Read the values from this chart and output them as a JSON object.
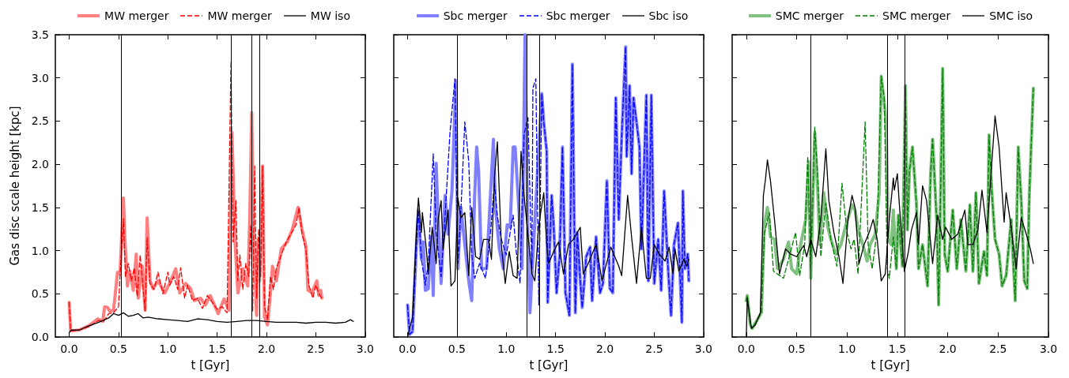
{
  "chart_data": [
    {
      "type": "line",
      "xlabel": "t [Gyr]",
      "ylabel": "Gas disc scale height [kpc]",
      "xlim": [
        -0.14,
        3.0
      ],
      "ylim": [
        0,
        3.5
      ],
      "xticks": [
        {
          "value": 0,
          "label": "0.0"
        },
        {
          "value": 0.5,
          "label": "0.5"
        },
        {
          "value": 1,
          "label": "1.0"
        },
        {
          "value": 1.5,
          "label": "1.5"
        },
        {
          "value": 2,
          "label": "2.0"
        },
        {
          "value": 2.5,
          "label": "2.5"
        },
        {
          "value": 3,
          "label": "3.0"
        }
      ],
      "yticks": [
        {
          "value": 0,
          "label": "0.0"
        },
        {
          "value": 0.5,
          "label": "0.5"
        },
        {
          "value": 1,
          "label": "1.0"
        },
        {
          "value": 1.5,
          "label": "1.5"
        },
        {
          "value": 2,
          "label": "2.0"
        },
        {
          "value": 2.5,
          "label": "2.5"
        },
        {
          "value": 3,
          "label": "3.0"
        },
        {
          "value": 3.5,
          "label": "3.5"
        }
      ],
      "legend": "top",
      "marker": "none",
      "ref_lines": [
        {
          "axis": "x",
          "value": 0.53,
          "color": "#000000"
        },
        {
          "axis": "x",
          "value": 1.64,
          "color": "#000000"
        },
        {
          "axis": "x",
          "value": 1.85,
          "color": "#000000"
        },
        {
          "axis": "x",
          "value": 1.93,
          "color": "#000000"
        }
      ],
      "series": [
        {
          "name": "MW merger",
          "color": "#ff8080",
          "line_style": "solid",
          "x": [
            0,
            0.015,
            0.1,
            0.2,
            0.29,
            0.34,
            0.36,
            0.39,
            0.41,
            0.45,
            0.49,
            0.515,
            0.55,
            0.565,
            0.59,
            0.615,
            0.65,
            0.68,
            0.7,
            0.74,
            0.77,
            0.79,
            0.82,
            0.85,
            0.9,
            0.97,
            1.03,
            1.08,
            1.12,
            1.18,
            1.23,
            1.27,
            1.33,
            1.38,
            1.43,
            1.51,
            1.57,
            1.62,
            1.65,
            1.68,
            1.71,
            1.76,
            1.81,
            1.83,
            1.85,
            1.87,
            1.9,
            1.915,
            1.93,
            1.96,
            1.98,
            2.01,
            2.04,
            2.06,
            2.1,
            2.15,
            2.21,
            2.26,
            2.32,
            2.36,
            2.4,
            2.42,
            2.46,
            2.51,
            2.53,
            2.55,
            2.56
          ],
          "values": [
            0.4,
            0.07,
            0.08,
            0.13,
            0.21,
            0.18,
            0.35,
            0.34,
            0.3,
            0.31,
            0.75,
            0.73,
            1.61,
            1.13,
            0.59,
            0.76,
            0.54,
            0.96,
            0.45,
            0.82,
            0.31,
            1.38,
            0.65,
            0.56,
            0.65,
            0.51,
            0.65,
            0.79,
            0.51,
            0.62,
            0.56,
            0.42,
            0.45,
            0.37,
            0.48,
            0.27,
            0.44,
            0.31,
            2.37,
            1.13,
            0.51,
            0.79,
            0.59,
            1.36,
            2.6,
            1.07,
            0.25,
            1.13,
            0.65,
            1.98,
            0.23,
            0.14,
            0.51,
            0.82,
            0.65,
            1.02,
            1.1,
            1.24,
            1.5,
            1.24,
            1.05,
            0.54,
            0.51,
            0.65,
            0.48,
            0.54,
            0.45
          ]
        },
        {
          "name": "MW merger",
          "color": "#ff0000",
          "line_style": "dashed",
          "x": [
            0,
            0.015,
            0.1,
            0.2,
            0.3,
            0.35,
            0.4,
            0.45,
            0.5,
            0.52,
            0.55,
            0.57,
            0.6,
            0.63,
            0.66,
            0.69,
            0.72,
            0.75,
            0.77,
            0.79,
            0.82,
            0.86,
            0.9,
            0.95,
            1.0,
            1.02,
            1.06,
            1.1,
            1.13,
            1.17,
            1.2,
            1.25,
            1.3,
            1.35,
            1.4,
            1.45,
            1.5,
            1.55,
            1.6,
            1.64,
            1.66,
            1.69,
            1.71,
            1.73,
            1.76,
            1.79,
            1.82,
            1.84,
            1.86,
            1.88,
            1.9,
            1.92,
            1.94,
            1.96,
            1.98,
            2.01,
            2.04,
            2.07,
            2.1,
            2.15,
            2.2,
            2.25,
            2.3,
            2.33,
            2.36,
            2.4,
            2.43,
            2.47,
            2.5,
            2.53,
            2.56
          ],
          "values": [
            0.4,
            0.07,
            0.08,
            0.12,
            0.19,
            0.18,
            0.27,
            0.28,
            0.35,
            0.8,
            1.37,
            0.7,
            0.85,
            0.65,
            0.8,
            0.47,
            0.95,
            0.55,
            0.3,
            1.15,
            0.62,
            0.55,
            0.75,
            0.5,
            0.75,
            0.6,
            0.7,
            0.55,
            0.8,
            0.45,
            0.6,
            0.42,
            0.45,
            0.33,
            0.48,
            0.4,
            0.32,
            0.35,
            0.28,
            3.19,
            1.1,
            1.58,
            0.65,
            0.95,
            0.55,
            0.85,
            0.7,
            1.3,
            0.3,
            1.98,
            0.45,
            1.25,
            0.7,
            1.98,
            0.35,
            0.2,
            0.7,
            0.55,
            0.8,
            0.95,
            1.1,
            1.2,
            1.3,
            1.5,
            1.2,
            1.0,
            0.6,
            0.45,
            0.6,
            0.5,
            0.45
          ]
        },
        {
          "name": "MW iso",
          "color": "#000000",
          "line_style": "solid",
          "x": [
            0,
            0.02,
            0.1,
            0.2,
            0.3,
            0.4,
            0.45,
            0.5,
            0.55,
            0.6,
            0.65,
            0.7,
            0.75,
            0.8,
            0.9,
            1.0,
            1.1,
            1.2,
            1.3,
            1.4,
            1.5,
            1.6,
            1.7,
            1.8,
            1.9,
            2.0,
            2.1,
            2.2,
            2.3,
            2.4,
            2.5,
            2.6,
            2.7,
            2.8,
            2.85,
            2.88
          ],
          "values": [
            0.05,
            0.08,
            0.08,
            0.13,
            0.17,
            0.22,
            0.27,
            0.25,
            0.28,
            0.24,
            0.25,
            0.27,
            0.22,
            0.23,
            0.21,
            0.2,
            0.19,
            0.18,
            0.21,
            0.2,
            0.18,
            0.17,
            0.18,
            0.19,
            0.19,
            0.18,
            0.17,
            0.17,
            0.17,
            0.16,
            0.17,
            0.17,
            0.16,
            0.17,
            0.2,
            0.18
          ]
        }
      ]
    },
    {
      "type": "line",
      "xlabel": "t [Gyr]",
      "xlim": [
        -0.14,
        3.0
      ],
      "ylim": [
        0,
        3.5
      ],
      "tick_labels": "x",
      "xticks": [
        {
          "value": 0,
          "label": "0.0"
        },
        {
          "value": 0.5,
          "label": "0.5"
        },
        {
          "value": 1,
          "label": "1.0"
        },
        {
          "value": 1.5,
          "label": "1.5"
        },
        {
          "value": 2,
          "label": "2.0"
        },
        {
          "value": 2.5,
          "label": "2.5"
        },
        {
          "value": 3,
          "label": "3.0"
        }
      ],
      "yticks": [
        0,
        0.5,
        1,
        1.5,
        2,
        2.5,
        3,
        3.5
      ],
      "legend": "top",
      "marker": "none",
      "ref_lines": [
        {
          "axis": "x",
          "value": 0.5,
          "color": "#000000"
        },
        {
          "axis": "x",
          "value": 1.21,
          "color": "#000000"
        },
        {
          "axis": "x",
          "value": 1.34,
          "color": "#000000"
        }
      ],
      "series": [
        {
          "name": "Sbc merger",
          "color": "#8080ff",
          "line_style": "solid",
          "x": [
            0,
            0.02,
            0.05,
            0.09,
            0.11,
            0.14,
            0.16,
            0.18,
            0.21,
            0.24,
            0.26,
            0.29,
            0.31,
            0.34,
            0.38,
            0.41,
            0.45,
            0.49,
            0.51,
            0.54,
            0.58,
            0.62,
            0.65,
            0.68,
            0.7,
            0.72,
            0.75,
            0.8,
            0.84,
            0.87,
            0.89,
            0.93,
            0.97,
            1.01,
            1.04,
            1.07,
            1.09,
            1.12,
            1.16,
            1.19,
            1.22,
            1.24,
            1.36,
            1.38,
            1.41,
            1.42,
            1.46,
            1.48,
            1.51,
            1.54,
            1.57,
            1.6,
            1.64,
            1.67,
            1.7,
            1.72,
            1.75,
            1.77,
            1.81,
            1.85,
            1.87,
            1.91,
            1.95,
            1.98,
            2.02,
            2.05,
            2.08,
            2.11,
            2.14,
            2.17,
            2.21,
            2.22,
            2.25,
            2.27,
            2.29,
            2.32,
            2.35,
            2.37,
            2.42,
            2.44,
            2.47,
            2.5,
            2.54,
            2.57,
            2.6,
            2.64,
            2.67,
            2.7,
            2.74,
            2.78,
            2.79,
            2.81,
            2.84,
            2.85
          ],
          "values": [
            0.37,
            0.03,
            0.06,
            1.07,
            1.47,
            0.9,
            1.1,
            0.54,
            0.56,
            1.16,
            0.48,
            2.01,
            1.36,
            0.62,
            1.64,
            1.19,
            1.69,
            2.97,
            0.79,
            1.5,
            1.07,
            0.65,
            0.42,
            1.64,
            2.2,
            1.92,
            0.79,
            0.79,
            1.64,
            2.29,
            1.5,
            1.02,
            0.79,
            1.3,
            1.27,
            2.2,
            2.2,
            1.64,
            0.79,
            3.5,
            1.07,
            0.28,
            2.82,
            2.49,
            2.15,
            0.4,
            1.64,
            1.3,
            0.51,
            0.93,
            2.2,
            0.51,
            0.25,
            3.16,
            0.28,
            1.21,
            0.65,
            0.34,
            0.93,
            1.04,
            0.42,
            1.16,
            0.51,
            0.62,
            1.81,
            0.56,
            0.51,
            2.77,
            1.36,
            2.32,
            3.36,
            2.09,
            2.91,
            1.89,
            2.77,
            2.49,
            2.2,
            1.02,
            2.8,
            0.65,
            2.8,
            0.62,
            1.13,
            0.54,
            1.69,
            0.79,
            0.25,
            1.07,
            1.32,
            0.17,
            1.69,
            0.79,
            0.96,
            0.65
          ]
        },
        {
          "name": "Sbc merger",
          "color": "#0000ff",
          "line_style": "dashed",
          "x": [
            0,
            0.02,
            0.05,
            0.09,
            0.11,
            0.14,
            0.18,
            0.21,
            0.26,
            0.29,
            0.34,
            0.38,
            0.43,
            0.48,
            0.51,
            0.54,
            0.58,
            0.62,
            0.65,
            0.68,
            0.73,
            0.79,
            0.84,
            0.88,
            0.91,
            0.95,
            1.0,
            1.07,
            1.1,
            1.14,
            1.18,
            1.22,
            1.26,
            1.27,
            1.3,
            1.33,
            1.36,
            1.38,
            1.41,
            1.42,
            1.46,
            1.48,
            1.51,
            1.54,
            1.57,
            1.6,
            1.64,
            1.67,
            1.7,
            1.72,
            1.75,
            1.77,
            1.81,
            1.85,
            1.87,
            1.91,
            1.95,
            1.98,
            2.02,
            2.05,
            2.08,
            2.11,
            2.14,
            2.17,
            2.21,
            2.22,
            2.25,
            2.27,
            2.29,
            2.32,
            2.35,
            2.37,
            2.42,
            2.44,
            2.47,
            2.5,
            2.54,
            2.57,
            2.6,
            2.64,
            2.67,
            2.7,
            2.74,
            2.78,
            2.79,
            2.81,
            2.84,
            2.85
          ],
          "values": [
            0.37,
            0.03,
            0.06,
            1.07,
            1.47,
            0.9,
            0.6,
            0.85,
            2.12,
            1.2,
            0.7,
            1.4,
            2.37,
            2.99,
            0.85,
            1.45,
            2.49,
            2.03,
            0.95,
            0.68,
            0.85,
            0.68,
            1.2,
            1.78,
            1.4,
            1.13,
            0.95,
            1.41,
            1.0,
            0.62,
            2.34,
            2.54,
            0.79,
            2.88,
            2.99,
            0.37,
            2.82,
            2.49,
            2.15,
            0.4,
            1.64,
            1.3,
            0.51,
            0.93,
            2.2,
            0.51,
            0.25,
            3.16,
            0.28,
            1.21,
            0.65,
            0.34,
            0.93,
            1.04,
            0.42,
            1.16,
            0.51,
            0.62,
            1.81,
            0.56,
            0.51,
            2.77,
            1.36,
            2.32,
            3.36,
            2.09,
            2.91,
            1.89,
            2.77,
            2.49,
            2.2,
            1.02,
            2.8,
            0.65,
            2.8,
            0.62,
            1.13,
            0.54,
            1.69,
            0.79,
            0.25,
            1.07,
            1.32,
            0.17,
            1.69,
            0.79,
            0.96,
            0.65
          ]
        },
        {
          "name": "Sbc iso",
          "color": "#000000",
          "line_style": "solid",
          "x": [
            0,
            0.05,
            0.09,
            0.11,
            0.14,
            0.15,
            0.19,
            0.21,
            0.25,
            0.29,
            0.31,
            0.34,
            0.36,
            0.39,
            0.41,
            0.44,
            0.48,
            0.51,
            0.54,
            0.58,
            0.62,
            0.65,
            0.69,
            0.73,
            0.77,
            0.82,
            0.85,
            0.88,
            0.91,
            0.95,
            0.99,
            1.03,
            1.07,
            1.11,
            1.15,
            1.18,
            1.22,
            1.26,
            1.29,
            1.33,
            1.38,
            1.41,
            1.43,
            1.48,
            1.53,
            1.58,
            1.63,
            1.68,
            1.75,
            1.78,
            1.83,
            1.91,
            1.97,
            2.06,
            2.14,
            2.17,
            2.23,
            2.27,
            2.32,
            2.37,
            2.42,
            2.46,
            2.5,
            2.55,
            2.61,
            2.65,
            2.69,
            2.71,
            2.75,
            2.8,
            2.83,
            2.85
          ],
          "values": [
            0,
            0.23,
            1.24,
            1.61,
            1.21,
            1.44,
            1.02,
            0.73,
            1.27,
            0.85,
            1.36,
            1.58,
            1.02,
            1.3,
            1.47,
            0.59,
            0.65,
            1.61,
            1.38,
            1.44,
            0.71,
            1.5,
            0.93,
            0.9,
            1.13,
            1.13,
            0.9,
            1.84,
            2.26,
            1.07,
            0.62,
            0.99,
            0.71,
            0.68,
            2.15,
            1.64,
            1.19,
            0.73,
            0.65,
            1.3,
            1.67,
            1.07,
            0.85,
            0.99,
            1.1,
            0.73,
            1.07,
            1.13,
            1.27,
            0.73,
            0.85,
            1.07,
            0.65,
            1.04,
            0.82,
            0.71,
            1.64,
            1.16,
            0.62,
            1.27,
            0.68,
            0.68,
            1.07,
            0.96,
            0.88,
            1.04,
            0.73,
            1.02,
            0.76,
            0.9,
            0.82,
            0.9
          ]
        }
      ]
    },
    {
      "type": "line",
      "xlabel": "t [Gyr]",
      "xlim": [
        -0.14,
        3.0
      ],
      "ylim": [
        0,
        3.5
      ],
      "tick_labels": "x",
      "xticks": [
        {
          "value": 0,
          "label": "0.0"
        },
        {
          "value": 0.5,
          "label": "0.5"
        },
        {
          "value": 1,
          "label": "1.0"
        },
        {
          "value": 1.5,
          "label": "1.5"
        },
        {
          "value": 2,
          "label": "2.0"
        },
        {
          "value": 2.5,
          "label": "2.5"
        },
        {
          "value": 3,
          "label": "3.0"
        }
      ],
      "yticks": [
        0,
        0.5,
        1,
        1.5,
        2,
        2.5,
        3,
        3.5
      ],
      "legend": "top",
      "marker": "none",
      "ref_lines": [
        {
          "axis": "x",
          "value": 0.64,
          "color": "#000000"
        },
        {
          "axis": "x",
          "value": 1.4,
          "color": "#000000"
        },
        {
          "axis": "x",
          "value": 1.57,
          "color": "#000000"
        }
      ],
      "series": [
        {
          "name": "SMC merger",
          "color": "#80c080",
          "line_style": "solid",
          "x": [
            0,
            0.01,
            0.04,
            0.06,
            0.11,
            0.15,
            0.18,
            0.21,
            0.24,
            0.28,
            0.31,
            0.37,
            0.42,
            0.45,
            0.5,
            0.54,
            0.59,
            0.62,
            0.64,
            0.68,
            0.71,
            0.73,
            0.77,
            0.81,
            0.84,
            0.89,
            0.94,
            0.99,
            1.05,
            1.08,
            1.11,
            1.15,
            1.2,
            1.23,
            1.28,
            1.32,
            1.34,
            1.38,
            1.39,
            1.41,
            1.44,
            1.46,
            1.49,
            1.51,
            1.55,
            1.58,
            1.6,
            1.62,
            1.65,
            1.69,
            1.71,
            1.75,
            1.8,
            1.83,
            1.85,
            1.89,
            1.91,
            1.95,
            1.97,
            2.0,
            2.05,
            2.09,
            2.13,
            2.18,
            2.22,
            2.25,
            2.28,
            2.31,
            2.36,
            2.39,
            2.41,
            2.44,
            2.47,
            2.51,
            2.54,
            2.58,
            2.63,
            2.67,
            2.7,
            2.73,
            2.76,
            2.79,
            2.81,
            2.85
          ],
          "values": [
            0.42,
            0.48,
            0.14,
            0.1,
            0.2,
            0.28,
            1.3,
            1.5,
            1.16,
            1.13,
            0.79,
            0.9,
            1.1,
            0.79,
            0.73,
            1.07,
            1.36,
            2.03,
            0.68,
            2.37,
            1.67,
            1.07,
            1.67,
            1.27,
            1.13,
            0.96,
            1.07,
            1.3,
            1.53,
            1.47,
            1.24,
            1.1,
            0.88,
            1.07,
            1.19,
            1.67,
            3.02,
            2.6,
            2.4,
            1.13,
            1.07,
            1.47,
            0.79,
            1.41,
            0.82,
            2.91,
            1.24,
            1.92,
            2.2,
            1.53,
            0.79,
            1.07,
            0.59,
            1.89,
            2.29,
            1.36,
            0.37,
            3.11,
            0.96,
            0.76,
            1.47,
            0.79,
            1.36,
            0.76,
            1.53,
            0.76,
            1.67,
            0.62,
            0.99,
            0.71,
            2.34,
            1.64,
            1.13,
            0.96,
            0.59,
            0.71,
            1.36,
            0.42,
            2.2,
            1.58,
            0.65,
            0.56,
            1.64,
            2.88
          ]
        },
        {
          "name": "SMC merger",
          "color": "#008000",
          "line_style": "dashed",
          "x": [
            0,
            0.01,
            0.04,
            0.06,
            0.11,
            0.15,
            0.18,
            0.23,
            0.27,
            0.37,
            0.49,
            0.53,
            0.58,
            0.61,
            0.64,
            0.68,
            0.71,
            0.74,
            0.79,
            0.84,
            0.9,
            0.95,
            1.0,
            1.04,
            1.07,
            1.11,
            1.18,
            1.21,
            1.25,
            1.3,
            1.34,
            1.37,
            1.4,
            1.42,
            1.46,
            1.49,
            1.51,
            1.55,
            1.58,
            1.6,
            1.62,
            1.65,
            1.69,
            1.71,
            1.75,
            1.8,
            1.83,
            1.85,
            1.89,
            1.91,
            1.95,
            1.97,
            2.0,
            2.05,
            2.09,
            2.13,
            2.18,
            2.22,
            2.25,
            2.28,
            2.31,
            2.36,
            2.39,
            2.41,
            2.44,
            2.47,
            2.51,
            2.54,
            2.58,
            2.63,
            2.67,
            2.7,
            2.73,
            2.76,
            2.79,
            2.81,
            2.85
          ],
          "values": [
            0.42,
            0.48,
            0.14,
            0.1,
            0.2,
            0.28,
            1.2,
            1.44,
            0.76,
            0.68,
            1.21,
            0.71,
            1.07,
            2.09,
            0.79,
            2.43,
            1.84,
            0.93,
            1.55,
            1.13,
            0.82,
            1.78,
            1.21,
            1.02,
            1.13,
            0.73,
            2.49,
            1.07,
            0.79,
            1.24,
            3.02,
            2.77,
            0.79,
            0.68,
            1.16,
            0.79,
            1.41,
            0.82,
            2.91,
            1.24,
            1.92,
            2.2,
            1.53,
            0.79,
            1.07,
            0.59,
            1.89,
            2.29,
            1.36,
            0.37,
            3.11,
            0.96,
            0.76,
            1.47,
            0.79,
            1.36,
            0.76,
            1.53,
            0.76,
            1.67,
            0.62,
            0.99,
            0.71,
            2.34,
            1.64,
            1.13,
            0.96,
            0.59,
            0.71,
            1.36,
            0.42,
            2.2,
            1.58,
            0.65,
            0.56,
            1.64,
            2.88
          ]
        },
        {
          "name": "SMC iso",
          "color": "#000000",
          "line_style": "solid",
          "x": [
            0,
            0.01,
            0.05,
            0.09,
            0.14,
            0.17,
            0.19,
            0.21,
            0.24,
            0.28,
            0.33,
            0.39,
            0.44,
            0.5,
            0.57,
            0.6,
            0.64,
            0.69,
            0.74,
            0.79,
            0.82,
            0.87,
            0.92,
            0.96,
            1.01,
            1.05,
            1.08,
            1.12,
            1.17,
            1.22,
            1.26,
            1.3,
            1.34,
            1.38,
            1.42,
            1.46,
            1.47,
            1.5,
            1.52,
            1.57,
            1.61,
            1.64,
            1.69,
            1.71,
            1.75,
            1.79,
            1.85,
            1.9,
            1.95,
            1.98,
            2.04,
            2.1,
            2.17,
            2.2,
            2.25,
            2.3,
            2.34,
            2.39,
            2.47,
            2.51,
            2.56,
            2.58,
            2.63,
            2.68,
            2.73,
            2.78,
            2.82,
            2.85
          ],
          "values": [
            0,
            0.45,
            0.1,
            0.14,
            0.28,
            1.64,
            1.82,
            2.05,
            1.81,
            1.36,
            0.73,
            1.02,
            0.96,
            0.93,
            1.06,
            0.93,
            1.13,
            0.93,
            1.36,
            2.18,
            1.58,
            1.21,
            0.93,
            0.62,
            1.36,
            1.64,
            1.5,
            0.85,
            1.07,
            1.21,
            1.36,
            1.13,
            0.65,
            0.73,
            1.36,
            1.84,
            1.7,
            1.89,
            1.53,
            0.76,
            0.99,
            1.24,
            1.44,
            1.07,
            1.75,
            1.58,
            0.85,
            1.41,
            1.13,
            1.27,
            1.13,
            1.19,
            1.47,
            1.07,
            1.07,
            1.24,
            1.7,
            1.21,
            2.56,
            2.2,
            1.33,
            1.67,
            1.27,
            0.79,
            1.38,
            1.19,
            1.02,
            0.85
          ]
        }
      ]
    }
  ]
}
